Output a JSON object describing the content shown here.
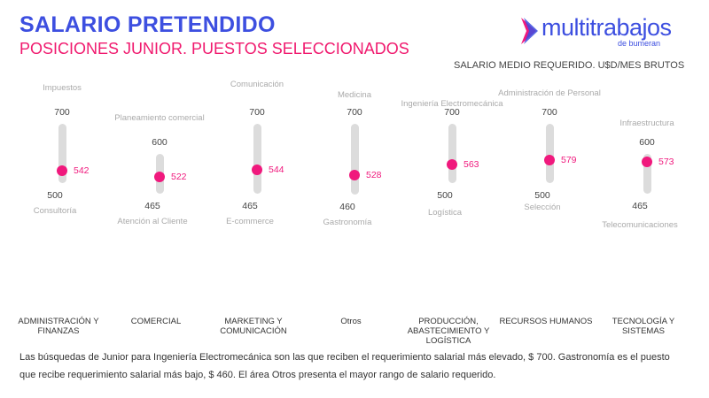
{
  "header": {
    "title": "SALARIO PRETENDIDO",
    "subtitle": "POSICIONES JUNIOR. PUESTOS SELECCIONADOS",
    "unit_label": "SALARIO MEDIO REQUERIDO. U$D/MES BRUTOS"
  },
  "logo": {
    "text": "multitrabajos",
    "sub": "de bumeran"
  },
  "chart_data": {
    "type": "range-dot",
    "title": "SALARIO PRETENDIDO",
    "ylabel": "U$D/MES BRUTOS",
    "categories": [
      "ADMINISTRACIÓN Y FINANZAS",
      "COMERCIAL",
      "MARKETING Y COMUNICACIÓN",
      "Otros",
      "PRODUCCIÓN, ABASTECIMIENTO Y LOGÍSTICA",
      "RECURSOS HUMANOS",
      "TECNOLOGÍA Y SISTEMAS"
    ],
    "series": [
      {
        "area": "ADMINISTRACIÓN Y FINANZAS",
        "max": 700,
        "max_position": "Impuestos",
        "min": 500,
        "min_position": "Consultoría",
        "mean": 542
      },
      {
        "area": "COMERCIAL",
        "max": 600,
        "max_position": "Planeamiento comercial",
        "min": 465,
        "min_position": "Atención al Cliente",
        "mean": 522
      },
      {
        "area": "MARKETING Y COMUNICACIÓN",
        "max": 700,
        "max_position": "Comunicación",
        "min": 465,
        "min_position": "E-commerce",
        "mean": 544
      },
      {
        "area": "Otros",
        "max": 700,
        "max_position": "Medicina",
        "min": 460,
        "min_position": "Gastronomía",
        "mean": 528
      },
      {
        "area": "PRODUCCIÓN, ABASTECIMIENTO Y LOGÍSTICA",
        "max": 700,
        "max_position": "Ingeniería Electromecánica",
        "min": 500,
        "min_position": "Logística",
        "mean": 563
      },
      {
        "area": "RECURSOS HUMANOS",
        "max": 700,
        "max_position": "Administración de Personal",
        "min": 500,
        "min_position": "Selección",
        "mean": 579
      },
      {
        "area": "TECNOLOGÍA Y SISTEMAS",
        "max": 600,
        "max_position": "Infraestructura",
        "min": 465,
        "min_position": "Telecomunicaciones",
        "mean": 573
      }
    ]
  },
  "note": "Las búsquedas de Junior para Ingeniería Electromecánica son las que reciben el requerimiento salarial más elevado, $ 700. Gastronomía es el puesto que recibe requerimiento salarial más bajo, $ 460.  El área Otros presenta el mayor rango de salario requerido.",
  "colors": {
    "title": "#3d4fe0",
    "accent": "#f0197d",
    "bar": "#dcdcdc"
  }
}
